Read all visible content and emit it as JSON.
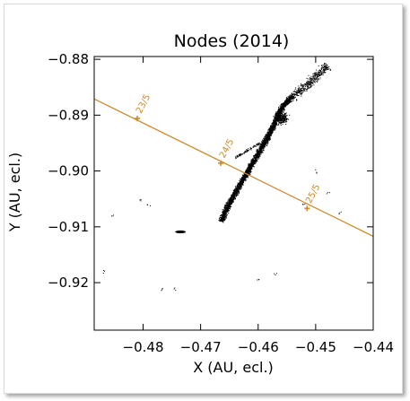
{
  "chart_data": {
    "type": "scatter",
    "title": "Nodes (2014)",
    "xlabel": "X (AU, ecl.)",
    "ylabel": "Y (AU, ecl.)",
    "xlim": [
      -0.4885,
      -0.44
    ],
    "ylim": [
      -0.9285,
      -0.8795
    ],
    "x_ticks": [
      -0.48,
      -0.47,
      -0.46,
      -0.45,
      -0.44
    ],
    "x_tick_labels": [
      "−0.48",
      "−0.47",
      "−0.46",
      "−0.45",
      "−0.44"
    ],
    "y_ticks": [
      -0.88,
      -0.89,
      -0.9,
      -0.91,
      -0.92
    ],
    "y_tick_labels": [
      "−0.88",
      "−0.89",
      "−0.90",
      "−0.91",
      "−0.92"
    ],
    "grid": false,
    "colors": {
      "orbit": "#cc8a2a",
      "nodes": "#000000"
    },
    "orbit_line": {
      "x": [
        -0.4885,
        -0.44
      ],
      "y": [
        -0.8871,
        -0.9117
      ]
    },
    "date_markers": [
      {
        "label": "23/5",
        "x": -0.481,
        "y": -0.8906
      },
      {
        "label": "24/5",
        "x": -0.4665,
        "y": -0.8986
      },
      {
        "label": "25/5",
        "x": -0.4515,
        "y": -0.9067
      }
    ],
    "node_cluster_main": [
      [
        -0.4665,
        -0.909
      ],
      [
        -0.465,
        -0.9055
      ],
      [
        -0.463,
        -0.902
      ],
      [
        -0.461,
        -0.8985
      ],
      [
        -0.459,
        -0.895
      ],
      [
        -0.4575,
        -0.892
      ],
      [
        -0.4565,
        -0.8895
      ],
      [
        -0.4555,
        -0.888
      ],
      [
        -0.454,
        -0.8865
      ],
      [
        -0.452,
        -0.885
      ],
      [
        -0.45,
        -0.883
      ],
      [
        -0.448,
        -0.881
      ]
    ],
    "node_cluster_small": [
      -0.4735,
      -0.9109
    ],
    "node_scatter_sparse": [
      [
        -0.4805,
        -0.905
      ],
      [
        -0.479,
        -0.906
      ],
      [
        -0.4855,
        -0.908
      ],
      [
        -0.477,
        -0.921
      ],
      [
        -0.4745,
        -0.921
      ],
      [
        -0.46,
        -0.9195
      ],
      [
        -0.457,
        -0.9185
      ],
      [
        -0.452,
        -0.906
      ],
      [
        -0.45,
        -0.9
      ],
      [
        -0.448,
        -0.904
      ],
      [
        -0.487,
        -0.918
      ],
      [
        -0.446,
        -0.9075
      ]
    ]
  }
}
